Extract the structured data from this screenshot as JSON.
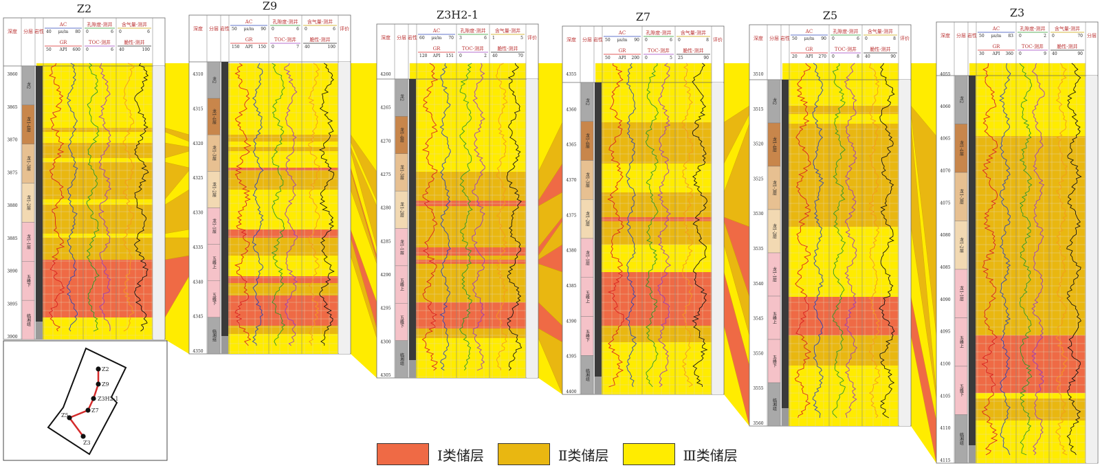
{
  "wells": [
    {
      "name": "Z2",
      "depth_label": "深度",
      "layer_label": "分层",
      "lith_label": "岩性",
      "curves_top": [
        {
          "name": "AC",
          "min": "40",
          "unit": "μs/m",
          "max": "80"
        },
        {
          "name": "孔隙度-测井",
          "min": "0",
          "max": "6"
        },
        {
          "name": "含气量-测井",
          "min": "0",
          "max": "6"
        }
      ],
      "curves_bottom": [
        {
          "name": "GR",
          "min": "50",
          "unit": "API",
          "max": "600"
        },
        {
          "name": "TOC-测井",
          "min": "0",
          "max": "6"
        },
        {
          "name": "脆性-测井",
          "min": "40",
          "max": "100"
        }
      ],
      "eval_label": "",
      "depths": [
        "3860",
        "3865",
        "3870",
        "3875",
        "3880",
        "3885",
        "3890",
        "3895",
        "3900"
      ],
      "layers": [
        "龙2",
        "龙1-4层",
        "龙1-3层",
        "龙1-2层",
        "龙1-1层",
        "五峰下",
        "临湘组"
      ]
    },
    {
      "name": "Z9",
      "depth_label": "深度",
      "layer_label": "分层",
      "lith_label": "岩性",
      "curves_top": [
        {
          "name": "AC",
          "min": "50",
          "unit": "μs/m",
          "max": "90"
        },
        {
          "name": "孔隙度-测井",
          "min": "0",
          "max": "6"
        },
        {
          "name": "含气量-测井",
          "min": "0",
          "max": "6"
        }
      ],
      "curves_bottom": [
        {
          "name": "GR",
          "min": "150",
          "unit": "API",
          "max": "150"
        },
        {
          "name": "TOC-测井",
          "min": "0",
          "max": "7"
        },
        {
          "name": "脆性-测井",
          "min": "40",
          "max": "100"
        }
      ],
      "eval_label": "评价",
      "depths": [
        "4310",
        "4315",
        "4320",
        "4325",
        "4330",
        "4335",
        "4340",
        "4345",
        "4350"
      ],
      "layers": [
        "龙2",
        "龙1-4层",
        "龙1-3层",
        "龙1-2层",
        "龙1-1层",
        "五峰上",
        "五峰下",
        "临湘组"
      ]
    },
    {
      "name": "Z3H2-1",
      "depth_label": "深度",
      "layer_label": "分层",
      "lith_label": "岩性",
      "curves_top": [
        {
          "name": "AC",
          "min": "60",
          "unit": "μs/m",
          "max": "70"
        },
        {
          "name": "孔隙度-测井",
          "min": "3",
          "max": "6"
        },
        {
          "name": "含气量-测井",
          "min": "1",
          "max": "5"
        }
      ],
      "curves_bottom": [
        {
          "name": "GR",
          "min": "120",
          "unit": "API",
          "max": "151"
        },
        {
          "name": "TOC-测井",
          "min": "0",
          "max": "2"
        },
        {
          "name": "脆性-测井",
          "min": "40",
          "max": "70"
        }
      ],
      "eval_label": "评价",
      "depths": [
        "4260",
        "4265",
        "4270",
        "4275",
        "4280",
        "4285",
        "4290",
        "4295",
        "4300",
        "4305"
      ],
      "layers": [
        "龙2",
        "龙1-4层",
        "龙1-3层",
        "龙1-2层",
        "龙1-1层",
        "五峰上",
        "五峰下",
        "临湘组"
      ]
    },
    {
      "name": "Z7",
      "depth_label": "深度",
      "layer_label": "分层",
      "lith_label": "岩性",
      "curves_top": [
        {
          "name": "AC",
          "min": "50",
          "unit": "μs/m",
          "max": "90"
        },
        {
          "name": "孔隙度-测井",
          "min": "0",
          "max": "6"
        },
        {
          "name": "含气量-测井",
          "min": "0",
          "max": "8"
        }
      ],
      "curves_bottom": [
        {
          "name": "GR",
          "min": "50",
          "unit": "API",
          "max": "200"
        },
        {
          "name": "TOC-测井",
          "min": "0",
          "max": "5"
        },
        {
          "name": "脆性-测井",
          "min": "25",
          "max": "90"
        }
      ],
      "eval_label": "评价",
      "depths": [
        "4355",
        "4360",
        "4365",
        "4370",
        "4375",
        "4380",
        "4385",
        "4390",
        "4395",
        "4400"
      ],
      "layers": [
        "龙2",
        "龙1-4层",
        "龙1-3层",
        "龙1-2层",
        "龙1-1层",
        "五峰上",
        "五峰下",
        "临湘组"
      ]
    },
    {
      "name": "Z5",
      "depth_label": "深度",
      "layer_label": "分层",
      "lith_label": "岩性",
      "curves_top": [
        {
          "name": "AC",
          "min": "50",
          "unit": "μs/m",
          "max": "90"
        },
        {
          "name": "孔隙度-测井",
          "min": "0",
          "max": "6"
        },
        {
          "name": "含气量-测井",
          "min": "0",
          "max": "8"
        }
      ],
      "curves_bottom": [
        {
          "name": "GR",
          "min": "20",
          "unit": "API",
          "max": "270"
        },
        {
          "name": "TOC-测井",
          "min": "0",
          "max": "8"
        },
        {
          "name": "脆性-测井",
          "min": "40",
          "max": "90"
        }
      ],
      "eval_label": "评价",
      "depths": [
        "3510",
        "3515",
        "3520",
        "3525",
        "3530",
        "3535",
        "3540",
        "3545",
        "3550",
        "3555",
        "3560"
      ],
      "layers": [
        "龙2",
        "龙1-4层",
        "龙1-3层",
        "龙1-2层",
        "龙1-1层",
        "五峰上",
        "五峰下",
        "临湘组"
      ]
    },
    {
      "name": "Z3",
      "depth_label": "深度",
      "layer_label": "分层",
      "lith_label": "岩性",
      "curves_top": [
        {
          "name": "AC",
          "min": "50",
          "unit": "μs/m",
          "max": "83"
        },
        {
          "name": "孔隙度-测井",
          "min": "0",
          "max": "2"
        },
        {
          "name": "含气量-测井",
          "min": "0",
          "max": "70"
        }
      ],
      "curves_bottom": [
        {
          "name": "GR",
          "min": "30",
          "unit": "API",
          "max": "360"
        },
        {
          "name": "TOC-测井",
          "min": "0",
          "max": "9"
        },
        {
          "name": "脆性-测井",
          "min": "40",
          "max": "90"
        }
      ],
      "eval_label": "分层",
      "depths": [
        "4055",
        "4060",
        "4065",
        "4070",
        "4075",
        "4080",
        "4085",
        "4090",
        "4095",
        "4100",
        "4105",
        "4110",
        "4115"
      ],
      "layers": [
        "龙2",
        "龙1-4层",
        "龙1-3层",
        "龙1-2层",
        "龙1-1层",
        "五峰上",
        "五峰下",
        "临湘组"
      ]
    }
  ],
  "map": {
    "wells": [
      "Z2",
      "Z9",
      "Z3H2-1",
      "Z7",
      "Z5",
      "Z3"
    ]
  },
  "legend": [
    {
      "label": "Ⅰ类储层",
      "color": "#ef6a45"
    },
    {
      "label": "Ⅱ类储层",
      "color": "#e9b711"
    },
    {
      "label": "Ⅲ类储层",
      "color": "#ffec00"
    }
  ],
  "colors": {
    "class1": "#ef6a45",
    "class2": "#e9b711",
    "class3": "#ffec00",
    "layer_brown": "#c8864b",
    "layer_tan": "#e7c091",
    "layer_light": "#f2d9b2",
    "layer_pink": "#f5c2c8",
    "layer_grey": "#a9a9a9",
    "grid": "#e3d8b8"
  }
}
